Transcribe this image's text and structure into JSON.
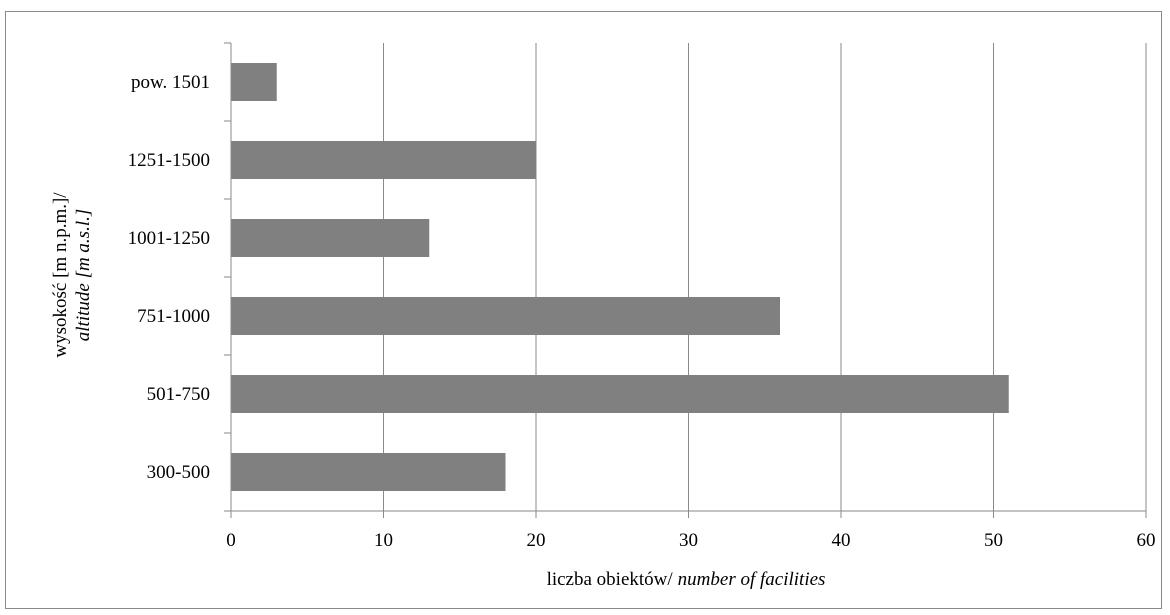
{
  "chart_data": {
    "type": "bar",
    "orientation": "horizontal",
    "categories": [
      "300-500",
      "501-750",
      "751-1000",
      "1001-1250",
      "1251-1500",
      "pow. 1501"
    ],
    "values": [
      18,
      51,
      36,
      13,
      20,
      3
    ],
    "xlabel": "liczba obiektów/",
    "xlabel_italic": "number of facilities",
    "ylabel_line1": "wysokość [m n.p.m.]/",
    "ylabel_line2": "altitude [m a.s.l.]",
    "xlim": [
      0,
      60
    ],
    "xticks": [
      0,
      10,
      20,
      30,
      40,
      50,
      60
    ],
    "grid": "vertical",
    "legend": "none",
    "bar_color": "#808080",
    "grid_color": "#8a8a8a"
  }
}
